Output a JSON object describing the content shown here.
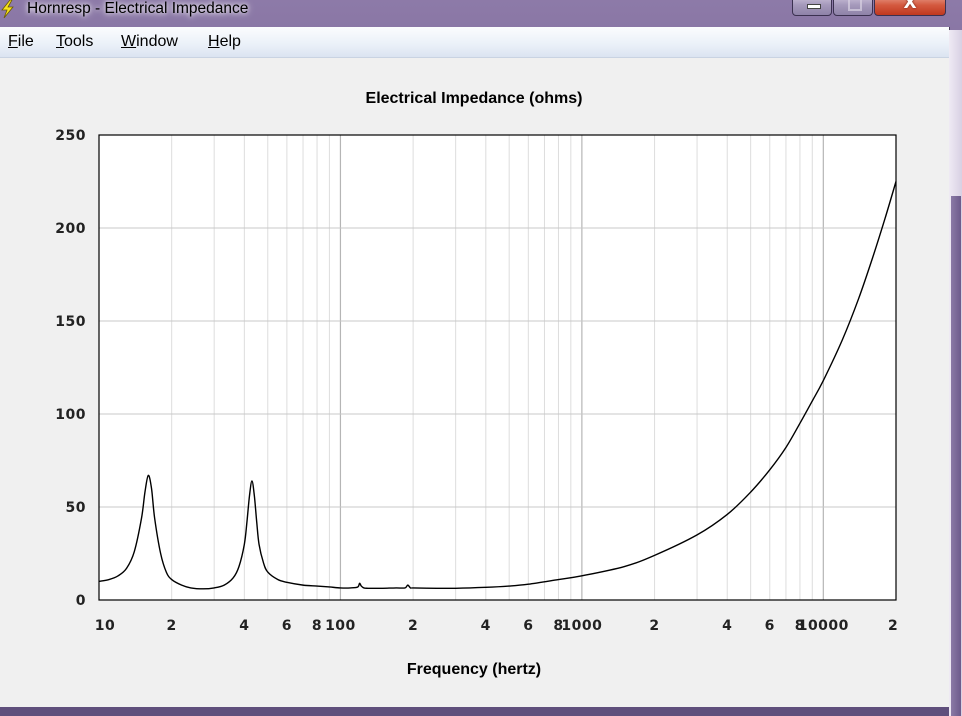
{
  "window": {
    "title": "Hornresp - Electrical Impedance",
    "app_icon": "lightning-bolt-icon",
    "controls": {
      "minimize": "minimize-icon",
      "maximize": "maximize-icon",
      "close_label": "X"
    }
  },
  "menu": {
    "items": [
      {
        "label_mn": "F",
        "label_rest": "ile"
      },
      {
        "label_mn": "T",
        "label_rest": "ools"
      },
      {
        "label_mn": "W",
        "label_rest": "indow"
      },
      {
        "label_mn": "H",
        "label_rest": "elp"
      }
    ]
  },
  "chart_data": {
    "type": "line",
    "title": "Electrical Impedance (ohms)",
    "xlabel": "Frequency (hertz)",
    "ylabel": "",
    "x_scale": "log",
    "xlim": [
      10,
      20000
    ],
    "ylim": [
      0,
      250
    ],
    "y_ticks": [
      0,
      50,
      100,
      150,
      200,
      250
    ],
    "x_tick_labels": [
      {
        "value": 10,
        "label": "10"
      },
      {
        "value": 20,
        "label": "2"
      },
      {
        "value": 40,
        "label": "4"
      },
      {
        "value": 60,
        "label": "6"
      },
      {
        "value": 80,
        "label": "8"
      },
      {
        "value": 100,
        "label": "100"
      },
      {
        "value": 200,
        "label": "2"
      },
      {
        "value": 400,
        "label": "4"
      },
      {
        "value": 600,
        "label": "6"
      },
      {
        "value": 800,
        "label": "8"
      },
      {
        "value": 1000,
        "label": "1000"
      },
      {
        "value": 2000,
        "label": "2"
      },
      {
        "value": 4000,
        "label": "4"
      },
      {
        "value": 6000,
        "label": "6"
      },
      {
        "value": 8000,
        "label": "8"
      },
      {
        "value": 10000,
        "label": "10000"
      },
      {
        "value": 20000,
        "label": "2"
      }
    ],
    "grid": true,
    "colors": {
      "line": "#000000",
      "grid": "#c8c8c8",
      "plot_bg": "#ffffff",
      "axis": "#000000"
    },
    "series": [
      {
        "x": [
          10,
          11,
          12,
          13,
          14,
          15,
          15.5,
          16,
          16.5,
          17,
          18,
          19,
          20,
          22,
          24,
          27,
          30,
          33,
          36,
          38,
          40,
          41,
          42,
          43,
          44,
          45,
          46,
          48,
          50,
          55,
          60,
          70,
          80,
          90,
          100,
          110,
          118,
          120,
          122,
          125,
          130,
          140,
          150,
          170,
          185,
          190,
          195,
          200,
          250,
          300,
          400,
          500,
          600,
          800,
          1000,
          1500,
          2000,
          3000,
          4000,
          5000,
          6000,
          7000,
          8000,
          9000,
          10000,
          12000,
          14000,
          16000,
          18000,
          20000
        ],
        "y": [
          10,
          11,
          13,
          17,
          26,
          44,
          58,
          67,
          60,
          44,
          25,
          15,
          11,
          8,
          6.5,
          6,
          6.5,
          8,
          12,
          18,
          30,
          42,
          56,
          64,
          56,
          42,
          30,
          20,
          15,
          11,
          9.5,
          8,
          7.5,
          7,
          6.5,
          6.5,
          7,
          9,
          7.5,
          6.5,
          6.3,
          6.3,
          6.3,
          6.5,
          6.5,
          8,
          6.5,
          6.5,
          6.3,
          6.3,
          6.8,
          7.5,
          8.5,
          11,
          13,
          18,
          24,
          35,
          46,
          58,
          70,
          82,
          95,
          107,
          118,
          140,
          162,
          184,
          205,
          225
        ]
      }
    ]
  }
}
